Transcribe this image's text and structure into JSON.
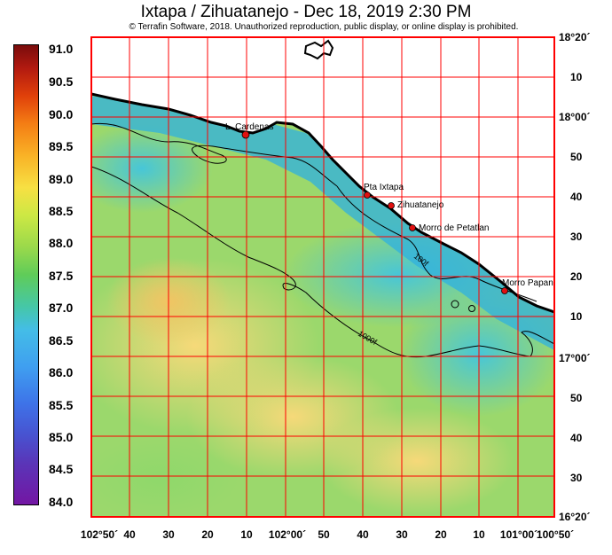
{
  "title": "Ixtapa / Zihuatanejo - Dec 18, 2019 2:30 PM",
  "copyright": "© Terrafin Software,  2018.  Unauthorized reproduction, public display, or online display is prohibited.",
  "colorbar": {
    "labels": [
      "91.0",
      "90.5",
      "90.0",
      "89.5",
      "89.0",
      "88.5",
      "88.0",
      "87.5",
      "87.0",
      "86.5",
      "86.0",
      "85.5",
      "85.0",
      "84.5",
      "84.0"
    ]
  },
  "x_ticks": [
    "102°50´",
    "40",
    "30",
    "20",
    "10",
    "102°00´",
    "50",
    "40",
    "30",
    "20",
    "10",
    "101°00´",
    "100°50´"
  ],
  "y_ticks": [
    "18°20´",
    "10",
    "18°00´",
    "50",
    "40",
    "30",
    "20",
    "10",
    "17°00´",
    "50",
    "40",
    "30",
    "16°20´"
  ],
  "places": [
    {
      "name": "L. Cardenas"
    },
    {
      "name": "Pta Ixtapa"
    },
    {
      "name": "Zihuatanejo"
    },
    {
      "name": "Morro de Petatlan"
    },
    {
      "name": "Morro Papan"
    }
  ],
  "contours": [
    {
      "label": "100f"
    },
    {
      "label": "1000f"
    }
  ],
  "colors": {
    "grid": "#ff0000",
    "land": "#ffffff",
    "coast": "#000000",
    "place_marker": "#e01010"
  }
}
